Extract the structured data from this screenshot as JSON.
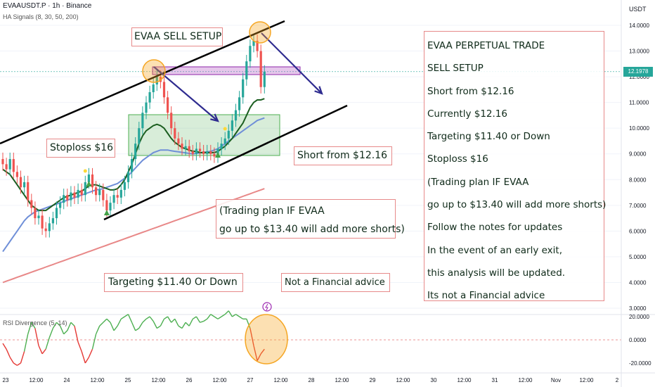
{
  "header": {
    "symbol_line": "EVAAUSDT.P · 1h · Binance",
    "indicator_line": "HA Signals (8, 30, 50, 200)",
    "rsi_label": "RSI Divergence (5, 14)",
    "currency": "USDT"
  },
  "annotations": {
    "title": "EVAA SELL SETUP",
    "stoploss": "Stoploss $16",
    "short_from": "Short from $12.16",
    "plan_line1": "(Trading plan IF EVAA",
    "plan_line2": "go up to $13.40 will add more shorts)",
    "targeting": "Targeting $11.40 Or Down",
    "not_advice": "Not a Financial advice"
  },
  "panel": {
    "lines": [
      "EVAA PERPETUAL TRADE",
      "SELL SETUP",
      "Short from $12.16",
      "Currently $12.16",
      "Targeting $11.40 or Down",
      "Stoploss $16",
      "(Trading plan IF EVAA",
      "go up to $13.40 will add more shorts)",
      "Follow the notes for updates",
      "In the event of an early exit,",
      "this analysis will be updated.",
      "Its not a Financial advice"
    ]
  },
  "current_price": "12.1978",
  "colors": {
    "bull": "#26a69a",
    "bear": "#ef5350",
    "channel": "#000000",
    "arrow": "#2e2b8f",
    "ma_fast": "#1b5e20",
    "ma_slow": "#6f8fd8",
    "ma_200": "#e88888",
    "rsi_up": "#4caf50",
    "rsi_down": "#e53935",
    "highlight_orange": "#f5a623"
  },
  "chart_data": {
    "type": "candlestick",
    "price_axis_ticks": [
      "14.0000",
      "13.0000",
      "12.0000",
      "11.0000",
      "10.0000",
      "9.0000",
      "8.0000",
      "7.0000",
      "6.0000",
      "5.0000",
      "4.0000",
      "3.0000"
    ],
    "rsi_axis_ticks": [
      "20.0000",
      "0.0000",
      "-20.0000"
    ],
    "time_axis_ticks": [
      "23",
      "12:00",
      "24",
      "12:00",
      "25",
      "12:00",
      "26",
      "12:00",
      "27",
      "12:00",
      "28",
      "12:00",
      "29",
      "12:00",
      "30",
      "12:00",
      "31",
      "12:00",
      "Nov",
      "12:00",
      "2"
    ],
    "ylim": [
      3,
      14.5
    ],
    "close_prices": [
      8.6,
      8.4,
      8.8,
      8.3,
      8.1,
      7.7,
      7.9,
      7.2,
      6.9,
      6.5,
      6.6,
      6.1,
      6.0,
      6.3,
      6.5,
      6.9,
      7.1,
      7.4,
      7.2,
      7.5,
      7.3,
      7.6,
      7.4,
      7.9,
      8.2,
      7.7,
      7.4,
      7.6,
      7.2,
      6.8,
      7.1,
      7.4,
      7.3,
      7.6,
      7.9,
      8.3,
      8.8,
      9.4,
      10.0,
      10.6,
      11.0,
      11.4,
      11.7,
      12.0,
      11.8,
      11.2,
      10.6,
      10.0,
      9.6,
      9.4,
      9.2,
      9.3,
      9.1,
      9.0,
      9.2,
      9.1,
      9.0,
      9.1,
      9.0,
      8.9,
      9.2,
      9.4,
      9.6,
      9.9,
      10.3,
      10.7,
      11.2,
      11.9,
      12.6,
      13.2,
      13.4,
      13.0,
      11.6,
      12.2
    ],
    "ma_fast": [
      8.4,
      8.3,
      8.2,
      8.0,
      7.8,
      7.6,
      7.4,
      7.2,
      7.0,
      6.9,
      6.8,
      6.8,
      6.8,
      6.9,
      7.0,
      7.1,
      7.2,
      7.3,
      7.35,
      7.4,
      7.45,
      7.5,
      7.55,
      7.65,
      7.75,
      7.8,
      7.8,
      7.75,
      7.7,
      7.65,
      7.6,
      7.6,
      7.65,
      7.8,
      8.0,
      8.3,
      8.6,
      9.0,
      9.4,
      9.7,
      9.9,
      10.0,
      10.1,
      10.15,
      10.1,
      10.0,
      9.8,
      9.6,
      9.45,
      9.35,
      9.25,
      9.2,
      9.15,
      9.1,
      9.1,
      9.05,
      9.05,
      9.05,
      9.05,
      9.05,
      9.1,
      9.2,
      9.3,
      9.45,
      9.6,
      9.8,
      10.0,
      10.2,
      10.5,
      10.8,
      11.0,
      11.1,
      11.1,
      11.15
    ],
    "ma_slow": [
      5.2,
      5.4,
      5.6,
      5.8,
      6.0,
      6.2,
      6.4,
      6.55,
      6.65,
      6.75,
      6.8,
      6.85,
      6.9,
      6.95,
      7.0,
      7.05,
      7.1,
      7.15,
      7.2,
      7.25,
      7.3,
      7.35,
      7.4,
      7.45,
      7.5,
      7.55,
      7.6,
      7.62,
      7.65,
      7.7,
      7.75,
      7.8,
      7.85,
      7.95,
      8.05,
      8.15,
      8.3,
      8.45,
      8.6,
      8.75,
      8.85,
      8.95,
      9.05,
      9.1,
      9.15,
      9.15,
      9.15,
      9.12,
      9.1,
      9.08,
      9.06,
      9.04,
      9.02,
      9.0,
      9.02,
      9.04,
      9.06,
      9.08,
      9.1,
      9.15,
      9.2,
      9.3,
      9.4,
      9.5,
      9.6,
      9.7,
      9.8,
      9.9,
      10.0,
      10.1,
      10.2,
      10.3,
      10.35,
      10.4
    ],
    "ma_200": [
      4.0,
      4.05,
      4.1,
      4.15,
      4.2,
      4.25,
      4.3,
      4.35,
      4.4,
      4.45,
      4.5,
      4.55,
      4.6,
      4.65,
      4.7,
      4.75,
      4.8,
      4.85,
      4.9,
      4.95,
      5.0,
      5.05,
      5.1,
      5.15,
      5.2,
      5.25,
      5.3,
      5.35,
      5.4,
      5.45,
      5.5,
      5.55,
      5.6,
      5.65,
      5.7,
      5.75,
      5.8,
      5.85,
      5.9,
      5.95,
      6.0,
      6.05,
      6.1,
      6.15,
      6.2,
      6.25,
      6.3,
      6.35,
      6.4,
      6.45,
      6.5,
      6.55,
      6.6,
      6.65,
      6.7,
      6.75,
      6.8,
      6.85,
      6.9,
      6.95,
      7.0,
      7.05,
      7.1,
      7.15,
      7.2,
      7.25,
      7.3,
      7.35,
      7.4,
      7.45,
      7.5,
      7.55,
      7.6,
      7.65
    ],
    "rsi": [
      -3,
      -8,
      -15,
      -20,
      -22,
      -20,
      -10,
      5,
      15,
      10,
      -5,
      -12,
      -8,
      2,
      10,
      15,
      12,
      5,
      8,
      15,
      12,
      -2,
      -10,
      -20,
      -15,
      -8,
      5,
      12,
      15,
      18,
      15,
      8,
      12,
      18,
      20,
      22,
      15,
      8,
      10,
      15,
      18,
      20,
      16,
      10,
      12,
      18,
      20,
      15,
      18,
      12,
      10,
      15,
      12,
      18,
      20,
      15,
      16,
      18,
      22,
      20,
      18,
      20,
      22,
      25,
      20,
      22,
      20,
      18,
      18,
      10,
      -5,
      -18,
      -12,
      -8
    ]
  }
}
